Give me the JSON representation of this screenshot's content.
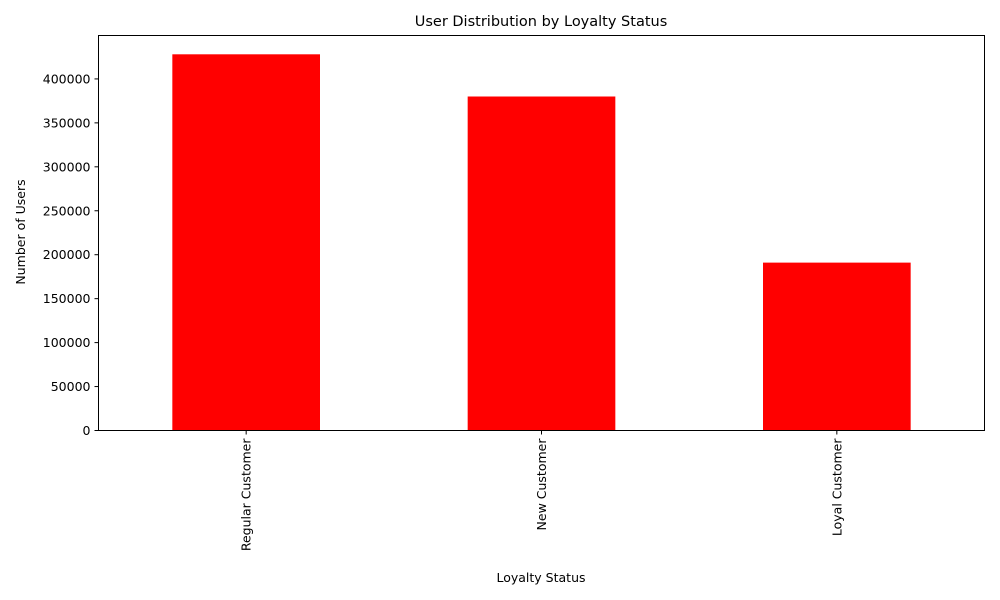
{
  "chart_data": {
    "type": "bar",
    "title": "User Distribution by Loyalty Status",
    "xlabel": "Loyalty Status",
    "ylabel": "Number of Users",
    "categories": [
      "Regular Customer",
      "New Customer",
      "Loyal Customer"
    ],
    "values": [
      428000,
      380000,
      191000
    ],
    "ylim": [
      0,
      449400
    ],
    "yticks": [
      0,
      50000,
      100000,
      150000,
      200000,
      250000,
      300000,
      350000,
      400000
    ],
    "ytick_labels": [
      "0",
      "50000",
      "100000",
      "150000",
      "200000",
      "250000",
      "300000",
      "350000",
      "400000"
    ],
    "bar_color": "#ff0000",
    "grid": false,
    "legend": "none"
  }
}
